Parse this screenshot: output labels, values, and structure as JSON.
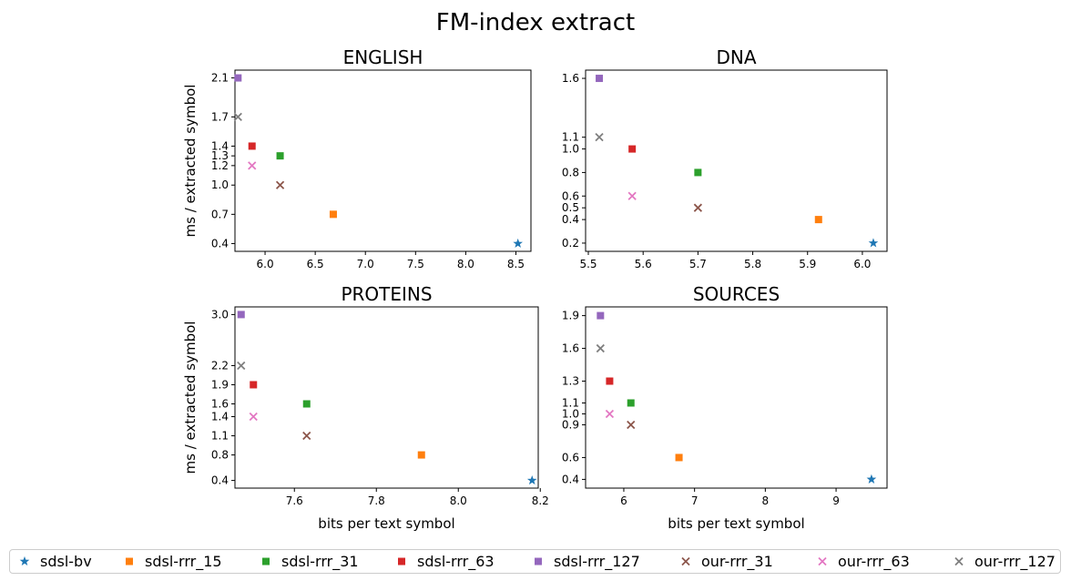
{
  "figure": {
    "title": "FM-index extract",
    "x_axis_label": "bits per text symbol",
    "y_axis_label": "ms / extracted symbol"
  },
  "legend": [
    {
      "name": "sdsl-bv",
      "color": "#1f77b4",
      "marker": "star"
    },
    {
      "name": "sdsl-rrr_15",
      "color": "#ff7f0e",
      "marker": "square"
    },
    {
      "name": "sdsl-rrr_31",
      "color": "#2ca02c",
      "marker": "square"
    },
    {
      "name": "sdsl-rrr_63",
      "color": "#d62728",
      "marker": "square"
    },
    {
      "name": "sdsl-rrr_127",
      "color": "#9467bd",
      "marker": "square"
    },
    {
      "name": "our-rrr_31",
      "color": "#8c564b",
      "marker": "x"
    },
    {
      "name": "our-rrr_63",
      "color": "#e377c2",
      "marker": "x"
    },
    {
      "name": "our-rrr_127",
      "color": "#7f7f7f",
      "marker": "x"
    }
  ],
  "chart_data": [
    {
      "type": "scatter",
      "title": "ENGLISH",
      "xlabel": "",
      "ylabel": "ms / extracted symbol",
      "xlim": [
        5.7,
        8.65
      ],
      "ylim": [
        0.32,
        2.18
      ],
      "xticks": [
        "6.0",
        "6.5",
        "7.0",
        "7.5",
        "8.0",
        "8.5"
      ],
      "xtick_values": [
        6.0,
        6.5,
        7.0,
        7.5,
        8.0,
        8.5
      ],
      "yticks": [
        "0.4",
        "0.7",
        "1.0",
        "1.2",
        "1.3",
        "1.4",
        "1.7",
        "2.1"
      ],
      "ytick_values": [
        0.4,
        0.7,
        1.0,
        1.2,
        1.3,
        1.4,
        1.7,
        2.1
      ],
      "series": [
        {
          "name": "sdsl-bv",
          "x": 8.52,
          "y": 0.4
        },
        {
          "name": "sdsl-rrr_15",
          "x": 6.68,
          "y": 0.7
        },
        {
          "name": "sdsl-rrr_31",
          "x": 6.15,
          "y": 1.3
        },
        {
          "name": "sdsl-rrr_63",
          "x": 5.87,
          "y": 1.4
        },
        {
          "name": "sdsl-rrr_127",
          "x": 5.73,
          "y": 2.1
        },
        {
          "name": "our-rrr_31",
          "x": 6.15,
          "y": 1.0
        },
        {
          "name": "our-rrr_63",
          "x": 5.87,
          "y": 1.2
        },
        {
          "name": "our-rrr_127",
          "x": 5.73,
          "y": 1.7
        }
      ]
    },
    {
      "type": "scatter",
      "title": "DNA",
      "xlabel": "",
      "ylabel": "",
      "xlim": [
        5.495,
        6.045
      ],
      "ylim": [
        0.13,
        1.67
      ],
      "xticks": [
        "5.5",
        "5.6",
        "5.7",
        "5.8",
        "5.9",
        "6.0"
      ],
      "xtick_values": [
        5.5,
        5.6,
        5.7,
        5.8,
        5.9,
        6.0
      ],
      "yticks": [
        "0.2",
        "0.4",
        "0.5",
        "0.6",
        "0.8",
        "1.0",
        "1.1",
        "1.6"
      ],
      "ytick_values": [
        0.2,
        0.4,
        0.5,
        0.6,
        0.8,
        1.0,
        1.1,
        1.6
      ],
      "series": [
        {
          "name": "sdsl-bv",
          "x": 6.02,
          "y": 0.2
        },
        {
          "name": "sdsl-rrr_15",
          "x": 5.92,
          "y": 0.4
        },
        {
          "name": "sdsl-rrr_31",
          "x": 5.7,
          "y": 0.8
        },
        {
          "name": "sdsl-rrr_63",
          "x": 5.58,
          "y": 1.0
        },
        {
          "name": "sdsl-rrr_127",
          "x": 5.52,
          "y": 1.6
        },
        {
          "name": "our-rrr_31",
          "x": 5.7,
          "y": 0.5
        },
        {
          "name": "our-rrr_63",
          "x": 5.58,
          "y": 0.6
        },
        {
          "name": "our-rrr_127",
          "x": 5.52,
          "y": 1.1
        }
      ]
    },
    {
      "type": "scatter",
      "title": "PROTEINS",
      "xlabel": "bits per text symbol",
      "ylabel": "ms / extracted symbol",
      "xlim": [
        7.455,
        8.195
      ],
      "ylim": [
        0.28,
        3.12
      ],
      "xticks": [
        "7.6",
        "7.8",
        "8.0",
        "8.2"
      ],
      "xtick_values": [
        7.6,
        7.8,
        8.0,
        8.2
      ],
      "yticks": [
        "0.4",
        "0.8",
        "1.1",
        "1.4",
        "1.6",
        "1.9",
        "2.2",
        "3.0"
      ],
      "ytick_values": [
        0.4,
        0.8,
        1.1,
        1.4,
        1.6,
        1.9,
        2.2,
        3.0
      ],
      "series": [
        {
          "name": "sdsl-bv",
          "x": 8.18,
          "y": 0.4
        },
        {
          "name": "sdsl-rrr_15",
          "x": 7.91,
          "y": 0.8
        },
        {
          "name": "sdsl-rrr_31",
          "x": 7.63,
          "y": 1.6
        },
        {
          "name": "sdsl-rrr_63",
          "x": 7.5,
          "y": 1.9
        },
        {
          "name": "sdsl-rrr_127",
          "x": 7.47,
          "y": 3.0
        },
        {
          "name": "our-rrr_31",
          "x": 7.63,
          "y": 1.1
        },
        {
          "name": "our-rrr_63",
          "x": 7.5,
          "y": 1.4
        },
        {
          "name": "our-rrr_127",
          "x": 7.47,
          "y": 2.2
        }
      ]
    },
    {
      "type": "scatter",
      "title": "SOURCES",
      "xlabel": "bits per text symbol",
      "ylabel": "",
      "xlim": [
        5.46,
        9.72
      ],
      "ylim": [
        0.32,
        1.98
      ],
      "xticks": [
        "6",
        "7",
        "8",
        "9"
      ],
      "xtick_values": [
        6,
        7,
        8,
        9
      ],
      "yticks": [
        "0.4",
        "0.6",
        "0.9",
        "1.0",
        "1.1",
        "1.3",
        "1.6",
        "1.9"
      ],
      "ytick_values": [
        0.4,
        0.6,
        0.9,
        1.0,
        1.1,
        1.3,
        1.6,
        1.9
      ],
      "series": [
        {
          "name": "sdsl-bv",
          "x": 9.5,
          "y": 0.4
        },
        {
          "name": "sdsl-rrr_15",
          "x": 6.78,
          "y": 0.6
        },
        {
          "name": "sdsl-rrr_31",
          "x": 6.1,
          "y": 1.1
        },
        {
          "name": "sdsl-rrr_63",
          "x": 5.8,
          "y": 1.3
        },
        {
          "name": "sdsl-rrr_127",
          "x": 5.67,
          "y": 1.9
        },
        {
          "name": "our-rrr_31",
          "x": 6.1,
          "y": 0.9
        },
        {
          "name": "our-rrr_63",
          "x": 5.8,
          "y": 1.0
        },
        {
          "name": "our-rrr_127",
          "x": 5.67,
          "y": 1.6
        }
      ]
    }
  ]
}
